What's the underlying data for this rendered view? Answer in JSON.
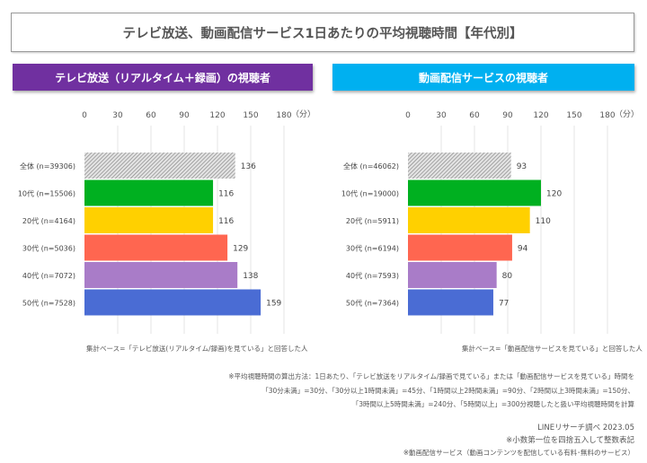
{
  "title": "テレビ放送、動画配信サービス1日あたりの平均視聴時間【年代別】",
  "chart_data": [
    {
      "type": "bar",
      "orientation": "horizontal",
      "header": "テレビ放送（リアルタイム＋録画）の視聴者",
      "header_color": "#7030a0",
      "categories": [
        "全体 (n=39306)",
        "10代 (n=15506)",
        "20代 (n=4164)",
        "30代 (n=5036)",
        "40代 (n=7072)",
        "50代 (n=7528)"
      ],
      "values": [
        136,
        116,
        116,
        129,
        138,
        159
      ],
      "colors": [
        "hatch-gray",
        "#00b020",
        "#ffd000",
        "#ff6650",
        "#a97cc8",
        "#4a6cd4"
      ],
      "xticks": [
        "0",
        "30",
        "60",
        "90",
        "120",
        "150",
        "180"
      ],
      "xlim": [
        0,
        180
      ],
      "unit": "（分）",
      "grid": true,
      "base_note": "集計ベース=「テレビ放送(リアルタイム/録画)を見ている」と回答した人"
    },
    {
      "type": "bar",
      "orientation": "horizontal",
      "header": "動画配信サービスの視聴者",
      "header_color": "#00b0f0",
      "categories": [
        "全体 (n=46062)",
        "10代 (n=19000)",
        "20代 (n=5911)",
        "30代 (n=6194)",
        "40代 (n=7593)",
        "50代 (n=7364)"
      ],
      "values": [
        93,
        120,
        110,
        94,
        80,
        77
      ],
      "colors": [
        "hatch-gray",
        "#00b020",
        "#ffd000",
        "#ff6650",
        "#a97cc8",
        "#4a6cd4"
      ],
      "xticks": [
        "0",
        "30",
        "60",
        "90",
        "120",
        "150",
        "180"
      ],
      "xlim": [
        0,
        180
      ],
      "unit": "（分）",
      "grid": true,
      "base_note": "集計ベース=「動画配信サービスを見ている」と回答した人"
    }
  ],
  "notes": {
    "method1": "※平均視聴時間の算出方法：1日あたり、「テレビ放送をリアルタイム/録画で見ている」または「動画配信サービスを見ている」時間を",
    "method2": "「30分未満」=30分、「30分以上1時間未満」=45分、「1時間以上2時間未満」=90分、「2時間以上3時間未満」=150分、",
    "method3": "「3時間以上5時間未満」=240分、「5時間以上」=300分視聴したと扱い平均視聴時間を計算",
    "source": "LINEリサーチ調べ 2023.05",
    "rounding": "※小数第一位を四捨五入して整数表記",
    "definition": "※動画配信サービス（動画コンテンツを配信している有料･無料のサービス）"
  }
}
